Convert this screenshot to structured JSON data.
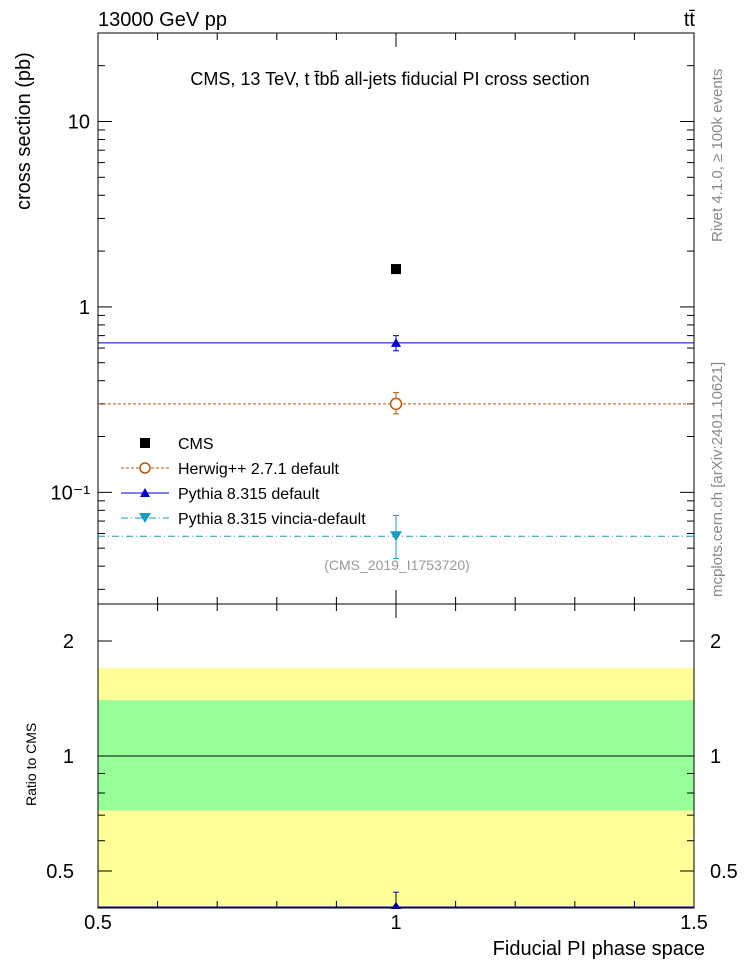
{
  "header": {
    "left": "13000 GeV pp",
    "right": "tt̄"
  },
  "side_text": {
    "rivet": "Rivet 4.1.0, ≥ 100k events",
    "mcplots": "mcplots.cern.ch [arXiv:2401.10621]"
  },
  "chart_data": [
    {
      "type": "scatter",
      "yscale": "log",
      "title": "CMS, 13 TeV, t t̄bb̄ all-jets fiducial PI cross section",
      "ylabel": "cross section (pb)",
      "analysis_tag": "(CMS_2019_I1753720)",
      "xlim": [
        0.5,
        1.5
      ],
      "ylim": [
        0.025,
        30
      ],
      "y_ticks": [
        {
          "v": 0.1,
          "label": "10⁻¹"
        },
        {
          "v": 1,
          "label": "1"
        },
        {
          "v": 10,
          "label": "10"
        }
      ],
      "series": [
        {
          "name": "CMS",
          "key": "cms",
          "x": 1,
          "y": 1.6,
          "err": [
            0,
            0
          ],
          "color": "#000000",
          "marker": "square",
          "line": "none"
        },
        {
          "name": "Herwig++ 2.7.1 default",
          "key": "herwig",
          "x": 1,
          "y": 0.3,
          "err": [
            0.035,
            0.045
          ],
          "color": "#b8560c",
          "marker": "open-circle",
          "line": "dashed"
        },
        {
          "name": "Pythia 8.315 default",
          "key": "pythia",
          "x": 1,
          "y": 0.64,
          "err": [
            0.06,
            0.06
          ],
          "color": "#0000cc",
          "marker": "triangle-up",
          "line": "solid"
        },
        {
          "name": "Pythia 8.315 vincia-default",
          "key": "vincia",
          "x": 1,
          "y": 0.058,
          "err": [
            0.014,
            0.017
          ],
          "color": "#1a9cc0",
          "marker": "triangle-down",
          "line": "dashdot"
        }
      ]
    },
    {
      "type": "scatter",
      "yscale": "log",
      "ylabel": "Ratio to CMS",
      "xlabel": "Fiducial PI phase space",
      "xlim": [
        0.5,
        1.5
      ],
      "ylim": [
        0.4,
        2.5
      ],
      "x_ticks": [
        {
          "v": 0.5,
          "label": "0.5"
        },
        {
          "v": 1,
          "label": "1"
        },
        {
          "v": 1.5,
          "label": "1.5"
        }
      ],
      "y_ticks": [
        {
          "v": 0.5,
          "label": "0.5"
        },
        {
          "v": 1,
          "label": "1"
        },
        {
          "v": 2,
          "label": "2"
        }
      ],
      "bands": [
        {
          "lo": 0.4,
          "hi": 1.7,
          "color": "#ffff99"
        },
        {
          "lo": 0.72,
          "hi": 1.4,
          "color": "#99ff99"
        }
      ],
      "reference": 1,
      "points": [
        {
          "key": "pythia",
          "y": 0.4,
          "err_hi": 0.04,
          "color": "#0000cc"
        }
      ]
    }
  ]
}
